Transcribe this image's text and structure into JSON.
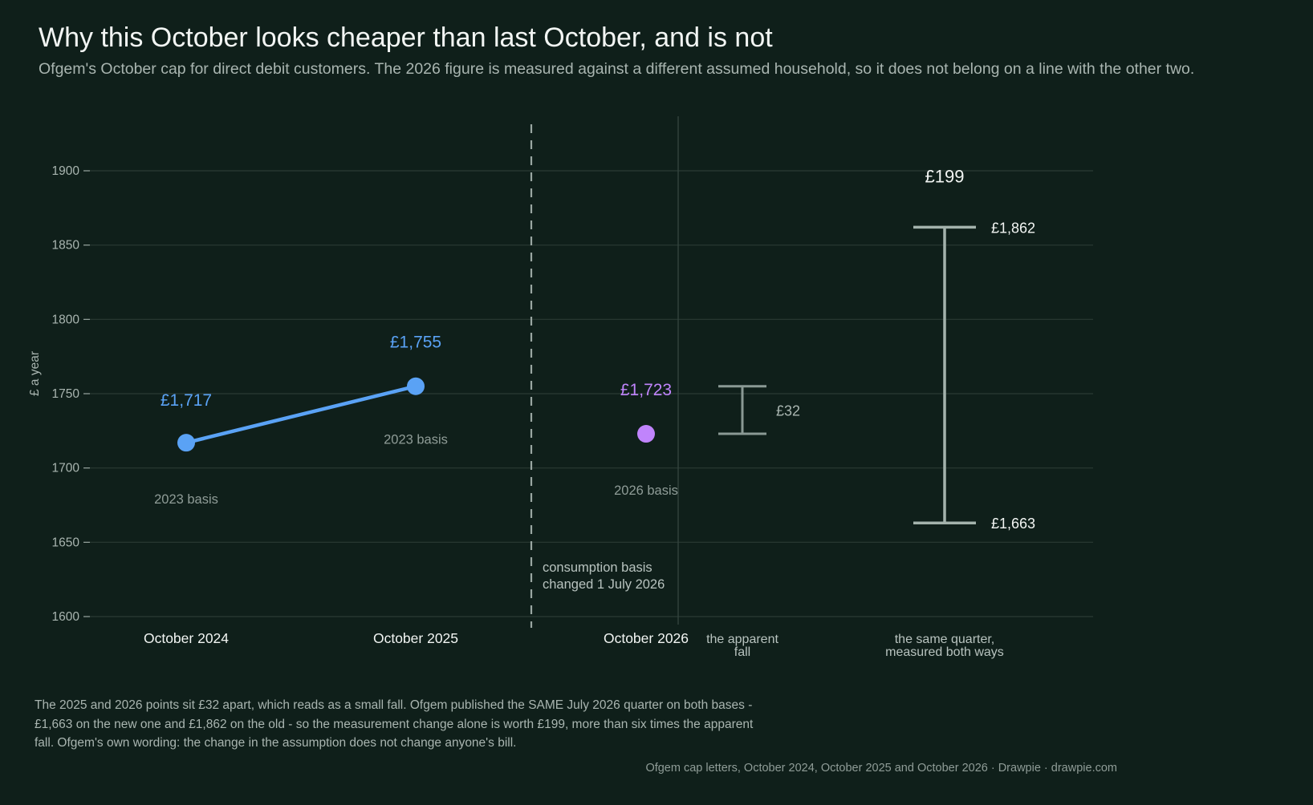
{
  "title": "Why this October looks cheaper than last October, and is not",
  "subtitle": "Ofgem's October cap for direct debit customers. The 2026 figure is measured against a different assumed household, so it does not belong on a line with the other two.",
  "footnote": "The 2025 and 2026 points sit £32 apart, which reads as a small fall. Ofgem published the SAME July 2026 quarter on both bases - £1,663 on the new one and £1,862 on the old - so the measurement change alone is worth £199, more than six times the apparent fall. Ofgem's own wording: the change in the assumption does not change anyone's bill.",
  "source": "Ofgem cap letters, October 2024, October 2025 and October 2026  ·  Drawpie · drawpie.com",
  "colors": {
    "background": "#0f1f1a",
    "old_basis": "#5aa2f5",
    "new_basis": "#c084fc",
    "range": "#a3b2ac",
    "apparent_fall": "#8a9994"
  },
  "chart_data": {
    "type": "line",
    "ylabel": "£ a year",
    "ylim": [
      1600,
      1900
    ],
    "yticks": [
      1600,
      1650,
      1700,
      1750,
      1800,
      1850,
      1900
    ],
    "grid": true,
    "series": [
      {
        "key": "old_basis",
        "points": [
          {
            "x": "October 2024",
            "y": 1717,
            "label": "£1,717",
            "basis": "2023 basis"
          },
          {
            "x": "October 2025",
            "y": 1755,
            "label": "£1,755",
            "basis": "2023 basis"
          }
        ]
      },
      {
        "key": "new_basis",
        "points": [
          {
            "x": "October 2026",
            "y": 1723,
            "label": "£1,723",
            "basis": "2026 basis"
          }
        ]
      }
    ],
    "divider_annotation": [
      "consumption basis",
      "changed 1 July 2026"
    ],
    "apparent_fall": {
      "category": [
        "the apparent",
        "fall"
      ],
      "low": 1723,
      "high": 1755,
      "label": "£32"
    },
    "same_quarter": {
      "category": [
        "the same quarter,",
        "measured both ways"
      ],
      "low": 1663,
      "high": 1862,
      "low_label": "£1,663",
      "high_label": "£1,862",
      "difference_label": "£199"
    }
  }
}
